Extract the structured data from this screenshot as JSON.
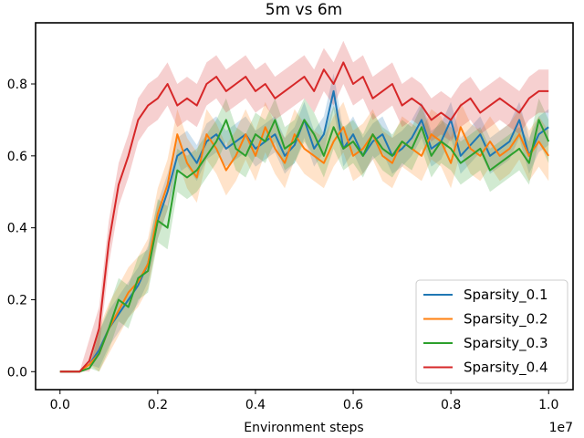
{
  "chart_data": {
    "type": "line",
    "title": "5m vs 6m",
    "xlabel": "Environment steps",
    "ylabel": "",
    "x_offset_label": "1e7",
    "xlim": [
      -0.05,
      1.05
    ],
    "ylim": [
      -0.05,
      0.97
    ],
    "x_ticks": [
      0.0,
      0.2,
      0.4,
      0.6,
      0.8,
      1.0
    ],
    "x_tick_labels": [
      "0.0",
      "0.2",
      "0.4",
      "0.6",
      "0.8",
      "1.0"
    ],
    "y_ticks": [
      0.0,
      0.2,
      0.4,
      0.6,
      0.8
    ],
    "y_tick_labels": [
      "0.0",
      "0.2",
      "0.4",
      "0.6",
      "0.8"
    ],
    "grid": false,
    "legend_position": "bottom-right",
    "series": [
      {
        "name": "Sparsity_0.1",
        "color": "#1f77b4",
        "x": [
          0.0,
          0.02,
          0.04,
          0.06,
          0.08,
          0.1,
          0.12,
          0.14,
          0.16,
          0.18,
          0.2,
          0.22,
          0.24,
          0.26,
          0.28,
          0.3,
          0.32,
          0.34,
          0.36,
          0.38,
          0.4,
          0.42,
          0.44,
          0.46,
          0.48,
          0.5,
          0.52,
          0.54,
          0.56,
          0.58,
          0.6,
          0.62,
          0.64,
          0.66,
          0.68,
          0.7,
          0.72,
          0.74,
          0.76,
          0.78,
          0.8,
          0.82,
          0.84,
          0.86,
          0.88,
          0.9,
          0.92,
          0.94,
          0.96,
          0.98,
          1.0
        ],
        "y": [
          0.0,
          0.0,
          0.0,
          0.02,
          0.06,
          0.12,
          0.16,
          0.2,
          0.24,
          0.3,
          0.42,
          0.5,
          0.6,
          0.62,
          0.58,
          0.64,
          0.66,
          0.62,
          0.64,
          0.66,
          0.62,
          0.64,
          0.66,
          0.6,
          0.63,
          0.7,
          0.62,
          0.66,
          0.78,
          0.62,
          0.66,
          0.6,
          0.64,
          0.66,
          0.6,
          0.62,
          0.65,
          0.7,
          0.62,
          0.64,
          0.7,
          0.6,
          0.63,
          0.66,
          0.6,
          0.62,
          0.64,
          0.7,
          0.6,
          0.66,
          0.68
        ],
        "band": 0.05
      },
      {
        "name": "Sparsity_0.2",
        "color": "#ff7f0e",
        "x": [
          0.0,
          0.02,
          0.04,
          0.06,
          0.08,
          0.1,
          0.12,
          0.14,
          0.16,
          0.18,
          0.2,
          0.22,
          0.24,
          0.26,
          0.28,
          0.3,
          0.32,
          0.34,
          0.36,
          0.38,
          0.4,
          0.42,
          0.44,
          0.46,
          0.48,
          0.5,
          0.52,
          0.54,
          0.56,
          0.58,
          0.6,
          0.62,
          0.64,
          0.66,
          0.68,
          0.7,
          0.72,
          0.74,
          0.76,
          0.78,
          0.8,
          0.82,
          0.84,
          0.86,
          0.88,
          0.9,
          0.92,
          0.94,
          0.96,
          0.98,
          1.0
        ],
        "y": [
          0.0,
          0.0,
          0.0,
          0.02,
          0.05,
          0.12,
          0.17,
          0.22,
          0.25,
          0.3,
          0.44,
          0.52,
          0.66,
          0.58,
          0.54,
          0.66,
          0.62,
          0.56,
          0.6,
          0.66,
          0.6,
          0.68,
          0.62,
          0.58,
          0.66,
          0.62,
          0.6,
          0.58,
          0.64,
          0.68,
          0.6,
          0.62,
          0.66,
          0.6,
          0.58,
          0.64,
          0.62,
          0.6,
          0.66,
          0.64,
          0.58,
          0.68,
          0.62,
          0.6,
          0.64,
          0.6,
          0.62,
          0.66,
          0.6,
          0.64,
          0.6
        ],
        "band": 0.07
      },
      {
        "name": "Sparsity_0.3",
        "color": "#2ca02c",
        "x": [
          0.0,
          0.02,
          0.04,
          0.06,
          0.08,
          0.1,
          0.12,
          0.14,
          0.16,
          0.18,
          0.2,
          0.22,
          0.24,
          0.26,
          0.28,
          0.3,
          0.32,
          0.34,
          0.36,
          0.38,
          0.4,
          0.42,
          0.44,
          0.46,
          0.48,
          0.5,
          0.52,
          0.54,
          0.56,
          0.58,
          0.6,
          0.62,
          0.64,
          0.66,
          0.68,
          0.7,
          0.72,
          0.74,
          0.76,
          0.78,
          0.8,
          0.82,
          0.84,
          0.86,
          0.88,
          0.9,
          0.92,
          0.94,
          0.96,
          0.98,
          1.0
        ],
        "y": [
          0.0,
          0.0,
          0.0,
          0.01,
          0.05,
          0.12,
          0.2,
          0.18,
          0.26,
          0.28,
          0.42,
          0.4,
          0.56,
          0.54,
          0.56,
          0.6,
          0.64,
          0.7,
          0.62,
          0.6,
          0.66,
          0.64,
          0.7,
          0.62,
          0.64,
          0.7,
          0.66,
          0.6,
          0.68,
          0.62,
          0.64,
          0.6,
          0.66,
          0.62,
          0.6,
          0.64,
          0.62,
          0.68,
          0.6,
          0.64,
          0.62,
          0.58,
          0.6,
          0.62,
          0.56,
          0.58,
          0.6,
          0.62,
          0.58,
          0.7,
          0.64
        ],
        "band": 0.06
      },
      {
        "name": "Sparsity_0.4",
        "color": "#d62728",
        "x": [
          0.0,
          0.02,
          0.04,
          0.06,
          0.08,
          0.1,
          0.12,
          0.14,
          0.16,
          0.18,
          0.2,
          0.22,
          0.24,
          0.26,
          0.28,
          0.3,
          0.32,
          0.34,
          0.36,
          0.38,
          0.4,
          0.42,
          0.44,
          0.46,
          0.48,
          0.5,
          0.52,
          0.54,
          0.56,
          0.58,
          0.6,
          0.62,
          0.64,
          0.66,
          0.68,
          0.7,
          0.72,
          0.74,
          0.76,
          0.78,
          0.8,
          0.82,
          0.84,
          0.86,
          0.88,
          0.9,
          0.92,
          0.94,
          0.96,
          0.98,
          1.0
        ],
        "y": [
          0.0,
          0.0,
          0.0,
          0.03,
          0.12,
          0.36,
          0.52,
          0.6,
          0.7,
          0.74,
          0.76,
          0.8,
          0.74,
          0.76,
          0.74,
          0.8,
          0.82,
          0.78,
          0.8,
          0.82,
          0.78,
          0.8,
          0.76,
          0.78,
          0.8,
          0.82,
          0.78,
          0.84,
          0.8,
          0.86,
          0.8,
          0.82,
          0.76,
          0.78,
          0.8,
          0.74,
          0.76,
          0.74,
          0.7,
          0.72,
          0.7,
          0.74,
          0.76,
          0.72,
          0.74,
          0.76,
          0.74,
          0.72,
          0.76,
          0.78,
          0.78
        ],
        "band": 0.06
      }
    ]
  }
}
